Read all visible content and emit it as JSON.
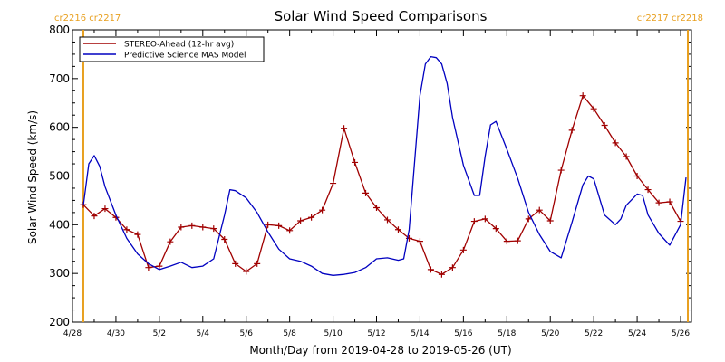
{
  "chart_data": {
    "type": "line",
    "title": "Solar Wind Speed Comparisons",
    "xlabel": "Month/Day from 2019-04-28 to 2019-05-26 (UT)",
    "ylabel": "Solar Wind Speed (km/s)",
    "xlim": [
      "2019-04-28",
      "2019-05-26T12:00"
    ],
    "ylim": [
      200,
      800
    ],
    "x_ticks": [
      {
        "date": "2019-04-28",
        "label": "4/28"
      },
      {
        "date": "2019-04-30",
        "label": "4/30"
      },
      {
        "date": "2019-05-02",
        "label": "5/2"
      },
      {
        "date": "2019-05-04",
        "label": "5/4"
      },
      {
        "date": "2019-05-06",
        "label": "5/6"
      },
      {
        "date": "2019-05-08",
        "label": "5/8"
      },
      {
        "date": "2019-05-10",
        "label": "5/10"
      },
      {
        "date": "2019-05-12",
        "label": "5/12"
      },
      {
        "date": "2019-05-14",
        "label": "5/14"
      },
      {
        "date": "2019-05-16",
        "label": "5/16"
      },
      {
        "date": "2019-05-18",
        "label": "5/18"
      },
      {
        "date": "2019-05-20",
        "label": "5/20"
      },
      {
        "date": "2019-05-22",
        "label": "5/22"
      },
      {
        "date": "2019-05-24",
        "label": "5/24"
      },
      {
        "date": "2019-05-26",
        "label": "5/26"
      }
    ],
    "y_ticks": [
      200,
      300,
      400,
      500,
      600,
      700,
      800
    ],
    "legend_position": "top-left",
    "carrington_markers": [
      {
        "date": "2019-04-28T12:00",
        "label": "cr2216 cr2217",
        "color": "#e8a020",
        "label_side": "left"
      },
      {
        "date": "2019-05-26T08:00",
        "label": "cr2217 cr2218",
        "color": "#e8a020",
        "label_side": "right"
      }
    ],
    "series": [
      {
        "name": "STEREO-Ahead (12-hr avg)",
        "color": "#a00000",
        "marker": "+",
        "points": [
          [
            "2019-04-28T12:00",
            441
          ],
          [
            "2019-04-29T00:00",
            418
          ],
          [
            "2019-04-29T12:00",
            433
          ],
          [
            "2019-04-30T00:00",
            415
          ],
          [
            "2019-04-30T12:00",
            390
          ],
          [
            "2019-05-01T00:00",
            380
          ],
          [
            "2019-05-01T12:00",
            312
          ],
          [
            "2019-05-02T00:00",
            315
          ],
          [
            "2019-05-02T12:00",
            365
          ],
          [
            "2019-05-03T00:00",
            395
          ],
          [
            "2019-05-03T12:00",
            398
          ],
          [
            "2019-05-04T00:00",
            395
          ],
          [
            "2019-05-04T12:00",
            392
          ],
          [
            "2019-05-05T00:00",
            370
          ],
          [
            "2019-05-05T12:00",
            320
          ],
          [
            "2019-05-06T00:00",
            304
          ],
          [
            "2019-05-06T12:00",
            320
          ],
          [
            "2019-05-07T00:00",
            400
          ],
          [
            "2019-05-07T12:00",
            398
          ],
          [
            "2019-05-08T00:00",
            388
          ],
          [
            "2019-05-08T12:00",
            408
          ],
          [
            "2019-05-09T00:00",
            415
          ],
          [
            "2019-05-09T12:00",
            430
          ],
          [
            "2019-05-10T00:00",
            485
          ],
          [
            "2019-05-10T12:00",
            598
          ],
          [
            "2019-05-11T00:00",
            528
          ],
          [
            "2019-05-11T12:00",
            465
          ],
          [
            "2019-05-12T00:00",
            435
          ],
          [
            "2019-05-12T12:00",
            410
          ],
          [
            "2019-05-13T00:00",
            390
          ],
          [
            "2019-05-13T12:00",
            372
          ],
          [
            "2019-05-14T00:00",
            366
          ],
          [
            "2019-05-14T12:00",
            308
          ],
          [
            "2019-05-15T00:00",
            298
          ],
          [
            "2019-05-15T12:00",
            312
          ],
          [
            "2019-05-16T00:00",
            348
          ],
          [
            "2019-05-16T12:00",
            407
          ],
          [
            "2019-05-17T00:00",
            412
          ],
          [
            "2019-05-17T12:00",
            392
          ],
          [
            "2019-05-18T00:00",
            366
          ],
          [
            "2019-05-18T12:00",
            367
          ],
          [
            "2019-05-19T00:00",
            412
          ],
          [
            "2019-05-19T12:00",
            430
          ],
          [
            "2019-05-20T00:00",
            408
          ],
          [
            "2019-05-20T12:00",
            512
          ],
          [
            "2019-05-21T00:00",
            594
          ],
          [
            "2019-05-21T12:00",
            665
          ],
          [
            "2019-05-22T00:00",
            638
          ],
          [
            "2019-05-22T12:00",
            604
          ],
          [
            "2019-05-23T00:00",
            568
          ],
          [
            "2019-05-23T12:00",
            540
          ],
          [
            "2019-05-24T00:00",
            500
          ],
          [
            "2019-05-24T12:00",
            472
          ],
          [
            "2019-05-25T00:00",
            445
          ],
          [
            "2019-05-25T12:00",
            447
          ],
          [
            "2019-05-26T00:00",
            407
          ]
        ]
      },
      {
        "name": "Predictive Science MAS Model",
        "color": "#0000c0",
        "marker": "none",
        "points": [
          [
            "2019-04-28T12:00",
            440
          ],
          [
            "2019-04-28T18:00",
            525
          ],
          [
            "2019-04-29T00:00",
            542
          ],
          [
            "2019-04-29T06:00",
            520
          ],
          [
            "2019-04-29T12:00",
            478
          ],
          [
            "2019-04-30T00:00",
            420
          ],
          [
            "2019-04-30T12:00",
            372
          ],
          [
            "2019-05-01T00:00",
            340
          ],
          [
            "2019-05-01T12:00",
            320
          ],
          [
            "2019-05-02T00:00",
            308
          ],
          [
            "2019-05-02T12:00",
            315
          ],
          [
            "2019-05-03T00:00",
            323
          ],
          [
            "2019-05-03T12:00",
            312
          ],
          [
            "2019-05-04T00:00",
            315
          ],
          [
            "2019-05-04T12:00",
            330
          ],
          [
            "2019-05-05T00:00",
            420
          ],
          [
            "2019-05-05T06:00",
            472
          ],
          [
            "2019-05-05T12:00",
            470
          ],
          [
            "2019-05-06T00:00",
            455
          ],
          [
            "2019-05-06T12:00",
            425
          ],
          [
            "2019-05-07T00:00",
            385
          ],
          [
            "2019-05-07T12:00",
            350
          ],
          [
            "2019-05-08T00:00",
            330
          ],
          [
            "2019-05-08T12:00",
            325
          ],
          [
            "2019-05-09T00:00",
            315
          ],
          [
            "2019-05-09T12:00",
            300
          ],
          [
            "2019-05-10T00:00",
            296
          ],
          [
            "2019-05-10T12:00",
            298
          ],
          [
            "2019-05-11T00:00",
            302
          ],
          [
            "2019-05-11T12:00",
            312
          ],
          [
            "2019-05-12T00:00",
            330
          ],
          [
            "2019-05-12T12:00",
            332
          ],
          [
            "2019-05-13T00:00",
            327
          ],
          [
            "2019-05-13T06:00",
            330
          ],
          [
            "2019-05-13T12:00",
            390
          ],
          [
            "2019-05-14T00:00",
            665
          ],
          [
            "2019-05-14T06:00",
            730
          ],
          [
            "2019-05-14T12:00",
            745
          ],
          [
            "2019-05-14T18:00",
            743
          ],
          [
            "2019-05-15T00:00",
            730
          ],
          [
            "2019-05-15T06:00",
            690
          ],
          [
            "2019-05-15T12:00",
            620
          ],
          [
            "2019-05-16T00:00",
            522
          ],
          [
            "2019-05-16T12:00",
            460
          ],
          [
            "2019-05-16T18:00",
            460
          ],
          [
            "2019-05-17T00:00",
            540
          ],
          [
            "2019-05-17T06:00",
            605
          ],
          [
            "2019-05-17T12:00",
            612
          ],
          [
            "2019-05-18T00:00",
            555
          ],
          [
            "2019-05-18T12:00",
            495
          ],
          [
            "2019-05-19T00:00",
            425
          ],
          [
            "2019-05-19T12:00",
            380
          ],
          [
            "2019-05-20T00:00",
            345
          ],
          [
            "2019-05-20T12:00",
            332
          ],
          [
            "2019-05-21T00:00",
            405
          ],
          [
            "2019-05-21T12:00",
            482
          ],
          [
            "2019-05-21T18:00",
            500
          ],
          [
            "2019-05-22T00:00",
            494
          ],
          [
            "2019-05-22T12:00",
            420
          ],
          [
            "2019-05-23T00:00",
            400
          ],
          [
            "2019-05-23T06:00",
            412
          ],
          [
            "2019-05-23T12:00",
            440
          ],
          [
            "2019-05-24T00:00",
            463
          ],
          [
            "2019-05-24T06:00",
            460
          ],
          [
            "2019-05-24T12:00",
            420
          ],
          [
            "2019-05-25T00:00",
            382
          ],
          [
            "2019-05-25T12:00",
            358
          ],
          [
            "2019-05-26T00:00",
            400
          ],
          [
            "2019-05-26T06:00",
            497
          ]
        ]
      }
    ]
  }
}
